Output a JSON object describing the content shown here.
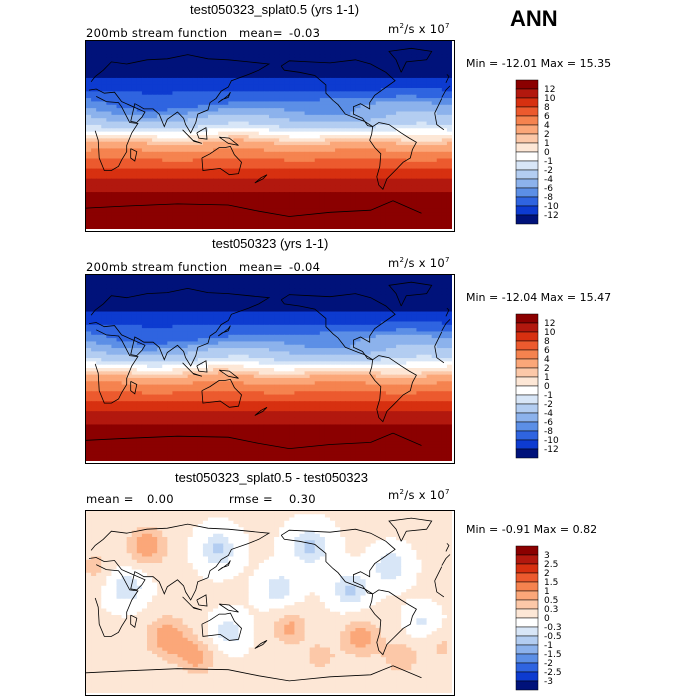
{
  "season": "ANN",
  "units_base": "m",
  "units_exp": "2",
  "units_mid": "/s x 10",
  "units_exp2": "7",
  "panels": [
    {
      "title": "test050323_splat0.5 (yrs 1-1)",
      "left_label": "200mb stream function",
      "stat_label": "mean=",
      "stat_value": "-0.03",
      "minmax": "Min = -12.01 Max =  15.35",
      "colorbar": {
        "labels": [
          "12",
          "10",
          "8",
          "6",
          "4",
          "2",
          "1",
          "0",
          "-1",
          "-2",
          "-4",
          "-6",
          "-8",
          "-10",
          "-12"
        ],
        "colors": [
          "#8b0000",
          "#b2180e",
          "#d73010",
          "#ec5a2e",
          "#f5834f",
          "#fba779",
          "#fcc8a8",
          "#fde7d6",
          "#ffffff",
          "#d8e6f7",
          "#b3cdf1",
          "#8cb2ec",
          "#5c8fe6",
          "#2f64e0",
          "#0d3bd0",
          "#00127a"
        ]
      },
      "field": "full"
    },
    {
      "title": "test050323 (yrs 1-1)",
      "left_label": "200mb stream function",
      "stat_label": "mean=",
      "stat_value": "-0.04",
      "minmax": "Min = -12.04 Max =  15.47",
      "colorbar": {
        "labels": [
          "12",
          "10",
          "8",
          "6",
          "4",
          "2",
          "1",
          "0",
          "-1",
          "-2",
          "-4",
          "-6",
          "-8",
          "-10",
          "-12"
        ],
        "colors": [
          "#8b0000",
          "#b2180e",
          "#d73010",
          "#ec5a2e",
          "#f5834f",
          "#fba779",
          "#fcc8a8",
          "#fde7d6",
          "#ffffff",
          "#d8e6f7",
          "#b3cdf1",
          "#8cb2ec",
          "#5c8fe6",
          "#2f64e0",
          "#0d3bd0",
          "#00127a"
        ]
      },
      "field": "full"
    },
    {
      "title": "test050323_splat0.5 - test050323",
      "left_label": "mean =",
      "left_value": "0.00",
      "stat_label": "rmse =",
      "stat_value": "0.30",
      "minmax": "Min = -0.91 Max =  0.82",
      "colorbar": {
        "labels": [
          "3",
          "2.5",
          "2",
          "1.5",
          "1",
          "0.5",
          "0.3",
          "0",
          "-0.3",
          "-0.5",
          "-1",
          "-1.5",
          "-2",
          "-2.5",
          "-3"
        ],
        "colors": [
          "#8b0000",
          "#b2180e",
          "#d73010",
          "#ec5a2e",
          "#f5834f",
          "#fba779",
          "#fcc8a8",
          "#fde7d6",
          "#ffffff",
          "#d8e6f7",
          "#b3cdf1",
          "#8cb2ec",
          "#5c8fe6",
          "#2f64e0",
          "#0d3bd0",
          "#00127a"
        ]
      },
      "field": "diff"
    }
  ],
  "chart_data": [
    {
      "type": "heatmap",
      "title": "test050323_splat0.5 (yrs 1-1)",
      "variable": "200mb stream function",
      "units": "m^2/s x 10^7",
      "mean": -0.03,
      "min": -12.01,
      "max": 15.35,
      "contour_levels": [
        -12,
        -10,
        -8,
        -6,
        -4,
        -2,
        -1,
        0,
        1,
        2,
        4,
        6,
        8,
        10,
        12
      ]
    },
    {
      "type": "heatmap",
      "title": "test050323 (yrs 1-1)",
      "variable": "200mb stream function",
      "units": "m^2/s x 10^7",
      "mean": -0.04,
      "min": -12.04,
      "max": 15.47,
      "contour_levels": [
        -12,
        -10,
        -8,
        -6,
        -4,
        -2,
        -1,
        0,
        1,
        2,
        4,
        6,
        8,
        10,
        12
      ]
    },
    {
      "type": "heatmap",
      "title": "test050323_splat0.5 - test050323",
      "units": "m^2/s x 10^7",
      "mean": 0.0,
      "rmse": 0.3,
      "min": -0.91,
      "max": 0.82,
      "contour_levels": [
        -3,
        -2.5,
        -2,
        -1.5,
        -1,
        -0.5,
        -0.3,
        0,
        0.3,
        0.5,
        1,
        1.5,
        2,
        2.5,
        3
      ]
    }
  ]
}
